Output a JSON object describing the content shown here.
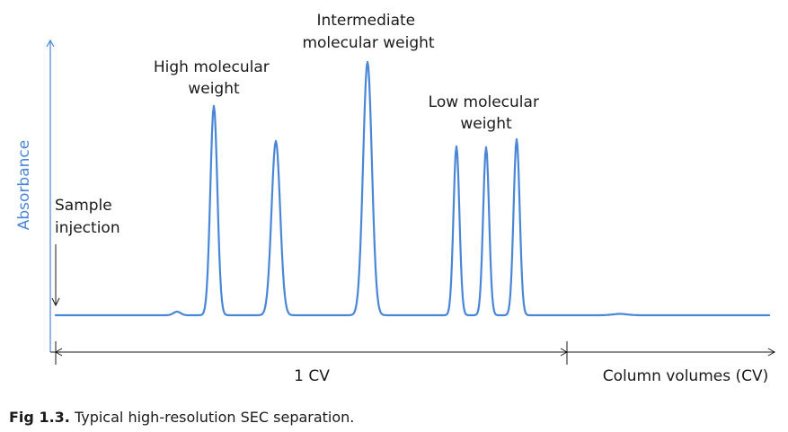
{
  "figure": {
    "y_axis_label": "Absorbance",
    "x_axis_label": "Column volumes (CV)",
    "cv_label": "1 CV",
    "annotations": {
      "sample_injection": [
        "Sample",
        "injection"
      ],
      "high_mw": [
        "High molecular",
        "weight"
      ],
      "intermediate_mw": [
        "Intermediate",
        "molecular weight"
      ],
      "low_mw": [
        "Low molecular",
        "weight"
      ]
    },
    "colors": {
      "trace": "#4a86d6",
      "axis_label": "#4a86d6",
      "axis": "#4a86d6",
      "text": "#1a1a1a"
    }
  },
  "caption": {
    "label": "Fig 1.3.",
    "text": "Typical high-resolution SEC separation."
  }
}
